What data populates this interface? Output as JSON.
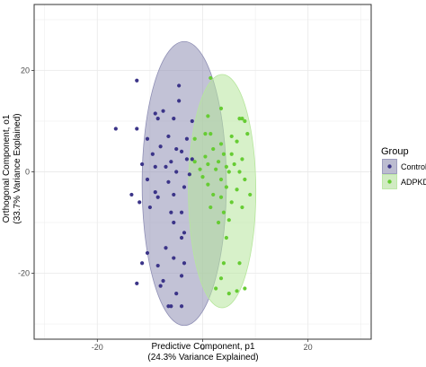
{
  "chart_data": {
    "type": "scatter",
    "xlabel_line1": "Predictive Component, p1",
    "xlabel_line2": "(24.3% Variance Explained)",
    "ylabel_line1": "Orthogonal Component, o1",
    "ylabel_line2": "(33.7% Variance Explained)",
    "xlim": [
      -32,
      32
    ],
    "ylim": [
      -33,
      33
    ],
    "xticks": [
      -20,
      0,
      20
    ],
    "yticks": [
      -20,
      0,
      20
    ],
    "grid": true,
    "legend": {
      "title": "Group",
      "position": "right",
      "entries": [
        "Control",
        "ADPKD"
      ]
    },
    "series": [
      {
        "name": "Control",
        "color": "#3b3488",
        "ellipse_color": "#8f8fb5",
        "ellipse": {
          "cx": -3.5,
          "cy": -2.3,
          "rx": 8.0,
          "ry": 28.0
        },
        "points": [
          [
            -12.5,
            18.0
          ],
          [
            -4.5,
            17.0
          ],
          [
            -12.5,
            8.5
          ],
          [
            -16.5,
            8.5
          ],
          [
            -9.0,
            11.5
          ],
          [
            -7.5,
            12.0
          ],
          [
            -4.5,
            14.0
          ],
          [
            -2.0,
            10.0
          ],
          [
            -5.5,
            10.5
          ],
          [
            -8.5,
            10.5
          ],
          [
            -10.5,
            6.5
          ],
          [
            -6.5,
            7.0
          ],
          [
            -3.0,
            6.5
          ],
          [
            -8.0,
            5.0
          ],
          [
            -5.0,
            4.5
          ],
          [
            -9.5,
            3.5
          ],
          [
            -4.0,
            4.0
          ],
          [
            -2.0,
            2.5
          ],
          [
            -6.0,
            2.0
          ],
          [
            -11.5,
            1.5
          ],
          [
            -9.0,
            1.0
          ],
          [
            -7.0,
            1.0
          ],
          [
            -3.0,
            2.5
          ],
          [
            -5.0,
            0.0
          ],
          [
            -2.5,
            -0.5
          ],
          [
            -10.5,
            -1.5
          ],
          [
            -6.5,
            -2.0
          ],
          [
            -3.5,
            -3.0
          ],
          [
            -9.0,
            -4.0
          ],
          [
            -5.5,
            -4.5
          ],
          [
            -8.5,
            -5.0
          ],
          [
            -13.5,
            -4.5
          ],
          [
            -12.0,
            -6.0
          ],
          [
            -10.0,
            -7.0
          ],
          [
            -6.0,
            -8.0
          ],
          [
            -4.0,
            -8.0
          ],
          [
            -5.5,
            -10.0
          ],
          [
            -3.5,
            -12.0
          ],
          [
            -4.0,
            -13.0
          ],
          [
            -7.0,
            -15.0
          ],
          [
            -10.5,
            -16.0
          ],
          [
            -5.5,
            -17.0
          ],
          [
            -11.5,
            -18.0
          ],
          [
            -8.5,
            -18.5
          ],
          [
            -3.5,
            -18.0
          ],
          [
            -4.0,
            -20.5
          ],
          [
            -7.5,
            -21.5
          ],
          [
            -12.5,
            -22.0
          ],
          [
            -8.0,
            -22.5
          ],
          [
            -5.0,
            -24.0
          ],
          [
            -4.0,
            -26.5
          ],
          [
            -6.5,
            -26.5
          ],
          [
            -6.0,
            -26.5
          ]
        ]
      },
      {
        "name": "ADPKD",
        "color": "#66cc33",
        "ellipse_color": "#b6e69c",
        "ellipse": {
          "cx": 3.7,
          "cy": -3.8,
          "rx": 6.4,
          "ry": 23.0
        },
        "points": [
          [
            1.5,
            18.5
          ],
          [
            1.0,
            11.0
          ],
          [
            3.5,
            12.5
          ],
          [
            7.0,
            10.5
          ],
          [
            8.0,
            10.0
          ],
          [
            7.5,
            10.5
          ],
          [
            0.5,
            7.5
          ],
          [
            1.5,
            7.5
          ],
          [
            5.5,
            7.0
          ],
          [
            8.5,
            7.5
          ],
          [
            -1.5,
            6.5
          ],
          [
            6.5,
            6.0
          ],
          [
            3.5,
            5.5
          ],
          [
            2.0,
            4.5
          ],
          [
            4.0,
            3.5
          ],
          [
            0.5,
            3.0
          ],
          [
            5.5,
            3.5
          ],
          [
            7.5,
            2.5
          ],
          [
            -1.5,
            2.0
          ],
          [
            1.0,
            1.5
          ],
          [
            3.0,
            2.0
          ],
          [
            4.5,
            1.0
          ],
          [
            6.0,
            1.5
          ],
          [
            -0.5,
            0.5
          ],
          [
            2.5,
            0.5
          ],
          [
            5.0,
            0.0
          ],
          [
            7.0,
            0.0
          ],
          [
            0.0,
            -1.0
          ],
          [
            3.5,
            -1.5
          ],
          [
            8.0,
            -1.5
          ],
          [
            1.0,
            -2.5
          ],
          [
            4.5,
            -3.0
          ],
          [
            6.5,
            -3.5
          ],
          [
            2.0,
            -4.5
          ],
          [
            9.0,
            -4.5
          ],
          [
            3.5,
            -5.0
          ],
          [
            5.5,
            -6.0
          ],
          [
            1.5,
            -7.0
          ],
          [
            7.5,
            -7.0
          ],
          [
            4.0,
            -8.0
          ],
          [
            5.0,
            -9.5
          ],
          [
            3.0,
            -10.0
          ],
          [
            4.5,
            -13.0
          ],
          [
            4.0,
            -18.0
          ],
          [
            7.0,
            -18.0
          ],
          [
            3.5,
            -21.0
          ],
          [
            2.5,
            -23.0
          ],
          [
            5.0,
            -24.0
          ],
          [
            8.0,
            -23.0
          ],
          [
            6.5,
            -23.5
          ]
        ]
      }
    ]
  },
  "colors": {
    "panel_border": "#333333",
    "grid": "#ebebeb",
    "tick": "#333333"
  }
}
